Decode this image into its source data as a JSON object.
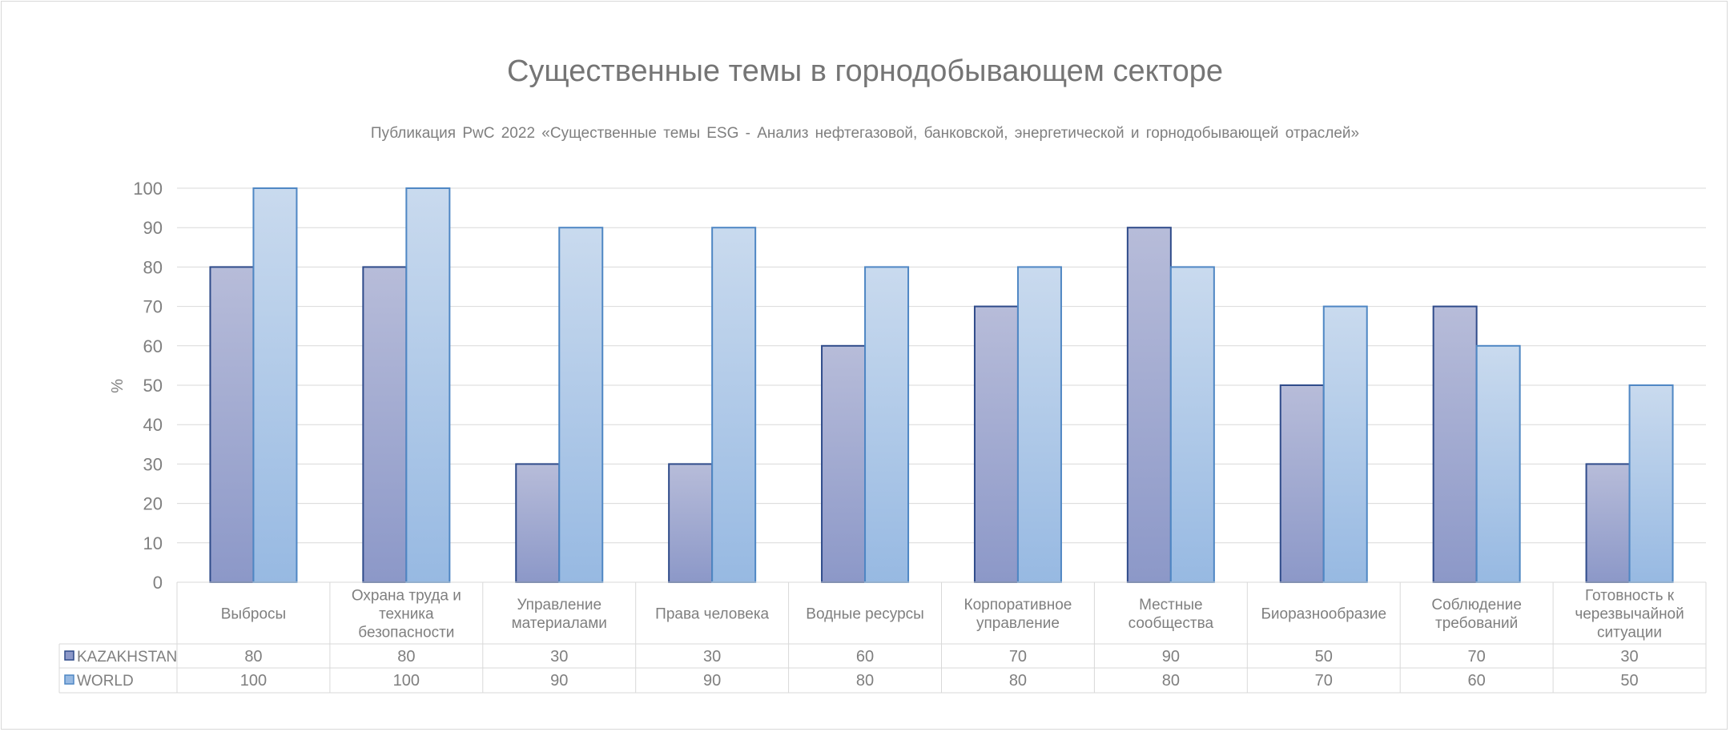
{
  "chart_data": {
    "type": "bar",
    "title": "Существенные темы в горнодобывающем секторе",
    "subtitle": "Публикация PwC 2022 «Существенные темы ESG - Анализ нефтегазовой, банковской, энергетической и горнодобывающей отраслей»",
    "ylabel": "%",
    "xlabel": "",
    "ylim": [
      0,
      100
    ],
    "yticks": [
      0,
      10,
      20,
      30,
      40,
      50,
      60,
      70,
      80,
      90,
      100
    ],
    "grid": true,
    "legend": "data-table",
    "categories": [
      "Выбросы",
      "Охрана труда и техника безопасности",
      "Управление материалами",
      "Права человека",
      "Водные ресурсы",
      "Корпоративное управление",
      "Местные сообщества",
      "Биоразнообразие",
      "Соблюдение требований",
      "Готовность к черезвычайной ситуации"
    ],
    "category_lines": [
      [
        "Выбросы"
      ],
      [
        "Охрана труда и",
        "техника",
        "безопасности"
      ],
      [
        "Управление",
        "материалами"
      ],
      [
        "Права человека"
      ],
      [
        "Водные ресурсы"
      ],
      [
        "Корпоративное",
        "управление"
      ],
      [
        "Местные",
        "сообщества"
      ],
      [
        "Биоразнообразие"
      ],
      [
        "Соблюдение",
        "требований"
      ],
      [
        "Готовность к",
        "черезвычайной",
        "ситуации"
      ]
    ],
    "series": [
      {
        "name": "KAZAKHSTAN",
        "values": [
          80,
          80,
          30,
          30,
          60,
          70,
          90,
          50,
          70,
          30
        ],
        "color_top": "#b7bcd9",
        "color_bottom": "#8c98c8",
        "border": "#2f4b8a"
      },
      {
        "name": "WORLD",
        "values": [
          100,
          100,
          90,
          90,
          80,
          80,
          80,
          70,
          60,
          50
        ],
        "color_top": "#c9daee",
        "color_bottom": "#97b9e2",
        "border": "#4f87c4"
      }
    ]
  }
}
